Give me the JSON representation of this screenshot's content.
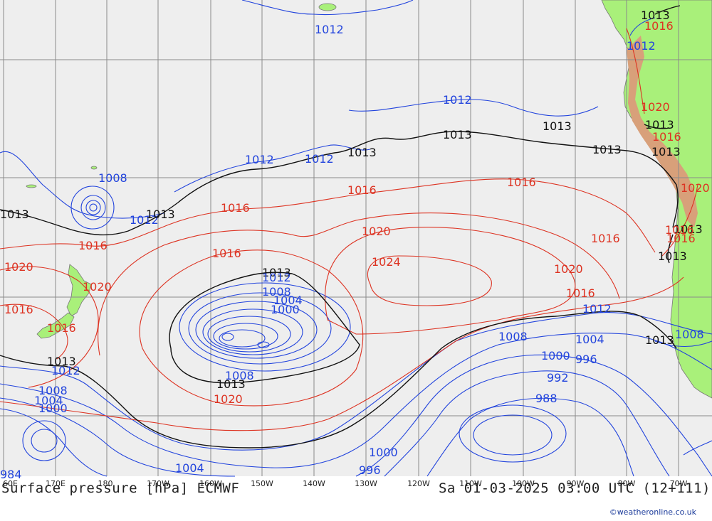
{
  "title": "Surface pressure [hPa] ECMWF",
  "valid_time": "Sa 01-03-2025 03:00 UTC (12+111)",
  "credit": "©weatheronline.co.uk",
  "colors": {
    "ocean": "#eeeeee",
    "land": "#a9f07a",
    "grid": "#8a8a8a",
    "low_isobar": "#2244dd",
    "high_isobar": "#dd3322",
    "reference_isobar": "#111111"
  },
  "longitude_labels": [
    "60E",
    "170E",
    "180",
    "170W",
    "160W",
    "150W",
    "140W",
    "130W",
    "120W",
    "110W",
    "100W",
    "90W",
    "80W",
    "70W"
  ],
  "isobar_labels": [
    {
      "text": "1012",
      "color": "low"
    },
    {
      "text": "1013",
      "color": "ref"
    },
    {
      "text": "1016",
      "color": "high"
    },
    {
      "text": "1012",
      "color": "low"
    },
    {
      "text": "1012",
      "color": "low"
    },
    {
      "text": "1013",
      "color": "ref"
    },
    {
      "text": "1012",
      "color": "low"
    },
    {
      "text": "1012",
      "color": "low"
    },
    {
      "text": "1013",
      "color": "ref"
    },
    {
      "text": "1013",
      "color": "ref"
    },
    {
      "text": "1013",
      "color": "ref"
    },
    {
      "text": "1008",
      "color": "low"
    },
    {
      "text": "1012",
      "color": "low"
    },
    {
      "text": "1013",
      "color": "ref"
    },
    {
      "text": "1016",
      "color": "high"
    },
    {
      "text": "1016",
      "color": "high"
    },
    {
      "text": "1016",
      "color": "high"
    },
    {
      "text": "1020",
      "color": "high"
    },
    {
      "text": "1016",
      "color": "high"
    },
    {
      "text": "1016",
      "color": "high"
    },
    {
      "text": "1020",
      "color": "high"
    },
    {
      "text": "1024",
      "color": "high"
    },
    {
      "text": "1013",
      "color": "ref"
    },
    {
      "text": "1012",
      "color": "low"
    },
    {
      "text": "1008",
      "color": "low"
    },
    {
      "text": "1004",
      "color": "low"
    },
    {
      "text": "1000",
      "color": "low"
    },
    {
      "text": "1020",
      "color": "high"
    },
    {
      "text": "1016",
      "color": "high"
    },
    {
      "text": "1012",
      "color": "low"
    },
    {
      "text": "1008",
      "color": "low"
    },
    {
      "text": "1004",
      "color": "low"
    },
    {
      "text": "1000",
      "color": "low"
    },
    {
      "text": "996",
      "color": "low"
    },
    {
      "text": "992",
      "color": "low"
    },
    {
      "text": "988",
      "color": "low"
    },
    {
      "text": "1020",
      "color": "high"
    },
    {
      "text": "1016",
      "color": "high"
    },
    {
      "text": "1016",
      "color": "high"
    },
    {
      "text": "1020",
      "color": "high"
    },
    {
      "text": "1016",
      "color": "high"
    },
    {
      "text": "1013",
      "color": "ref"
    },
    {
      "text": "1012",
      "color": "low"
    },
    {
      "text": "1008",
      "color": "low"
    },
    {
      "text": "1004",
      "color": "low"
    },
    {
      "text": "1000",
      "color": "low"
    },
    {
      "text": "1013",
      "color": "ref"
    },
    {
      "text": "1008",
      "color": "low"
    },
    {
      "text": "1013",
      "color": "ref"
    },
    {
      "text": "1020",
      "color": "high"
    },
    {
      "text": "1004",
      "color": "low"
    },
    {
      "text": "1000",
      "color": "low"
    },
    {
      "text": "996",
      "color": "low"
    },
    {
      "text": "984",
      "color": "low"
    },
    {
      "text": "1013",
      "color": "ref"
    },
    {
      "text": "1013",
      "color": "ref"
    },
    {
      "text": "1013",
      "color": "ref"
    },
    {
      "text": "1016",
      "color": "high"
    },
    {
      "text": "1020",
      "color": "high"
    },
    {
      "text": "1016",
      "color": "high"
    },
    {
      "text": "1016",
      "color": "high"
    },
    {
      "text": "1013",
      "color": "ref"
    },
    {
      "text": "1013",
      "color": "ref"
    },
    {
      "text": "1008",
      "color": "low"
    }
  ]
}
